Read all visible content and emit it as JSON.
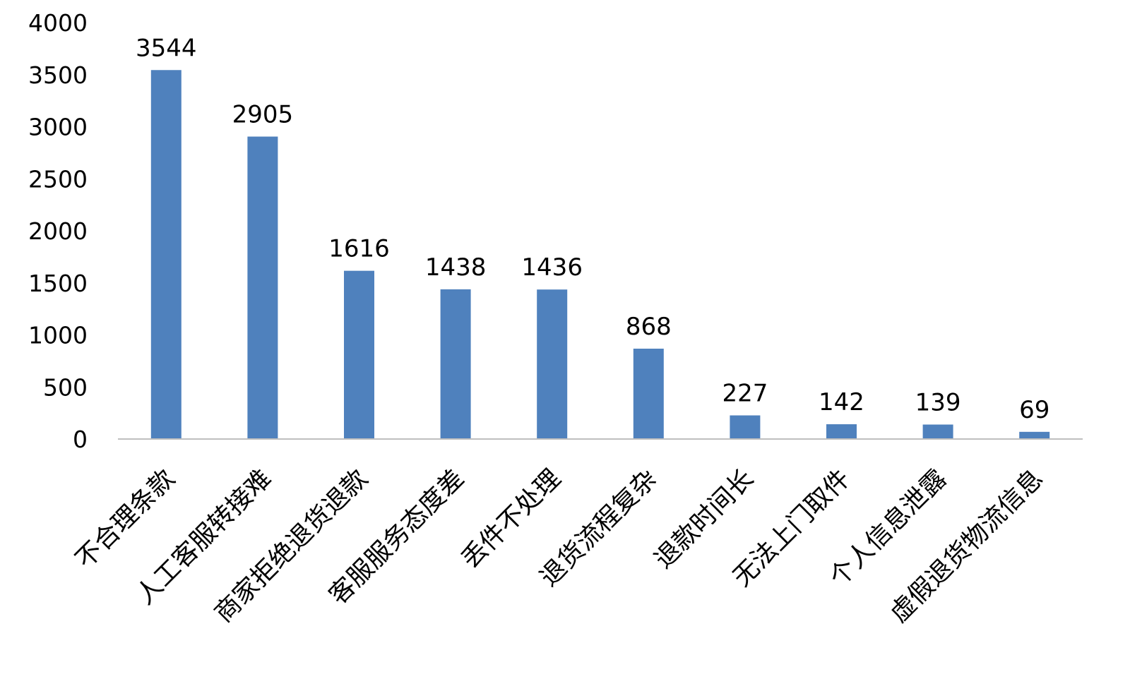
{
  "chart_data": {
    "type": "bar",
    "title": "",
    "xlabel": "",
    "ylabel": "",
    "categories": [
      "不合理条款",
      "人工客服转接难",
      "商家拒绝退货退款",
      "客服服务态度差",
      "丢件不处理",
      "退货流程复杂",
      "退款时间长",
      "无法上门取件",
      "个人信息泄露",
      "虚假退货物流信息"
    ],
    "values": [
      3544,
      2905,
      1616,
      1438,
      1436,
      868,
      227,
      142,
      139,
      69
    ],
    "data_labels": [
      "3544",
      "2905",
      "1616",
      "1438",
      "1436",
      "868",
      "227",
      "142",
      "139",
      "69"
    ],
    "ylim": [
      0,
      4000
    ],
    "yticks": [
      0,
      500,
      1000,
      1500,
      2000,
      2500,
      3000,
      3500,
      4000
    ],
    "ytick_labels": [
      "0",
      "500",
      "1000",
      "1500",
      "2000",
      "2500",
      "3000",
      "3500",
      "4000"
    ],
    "grid": false,
    "legend": "none",
    "bar_color": "#4f81bd",
    "axis_color": "#bfbfbf"
  }
}
